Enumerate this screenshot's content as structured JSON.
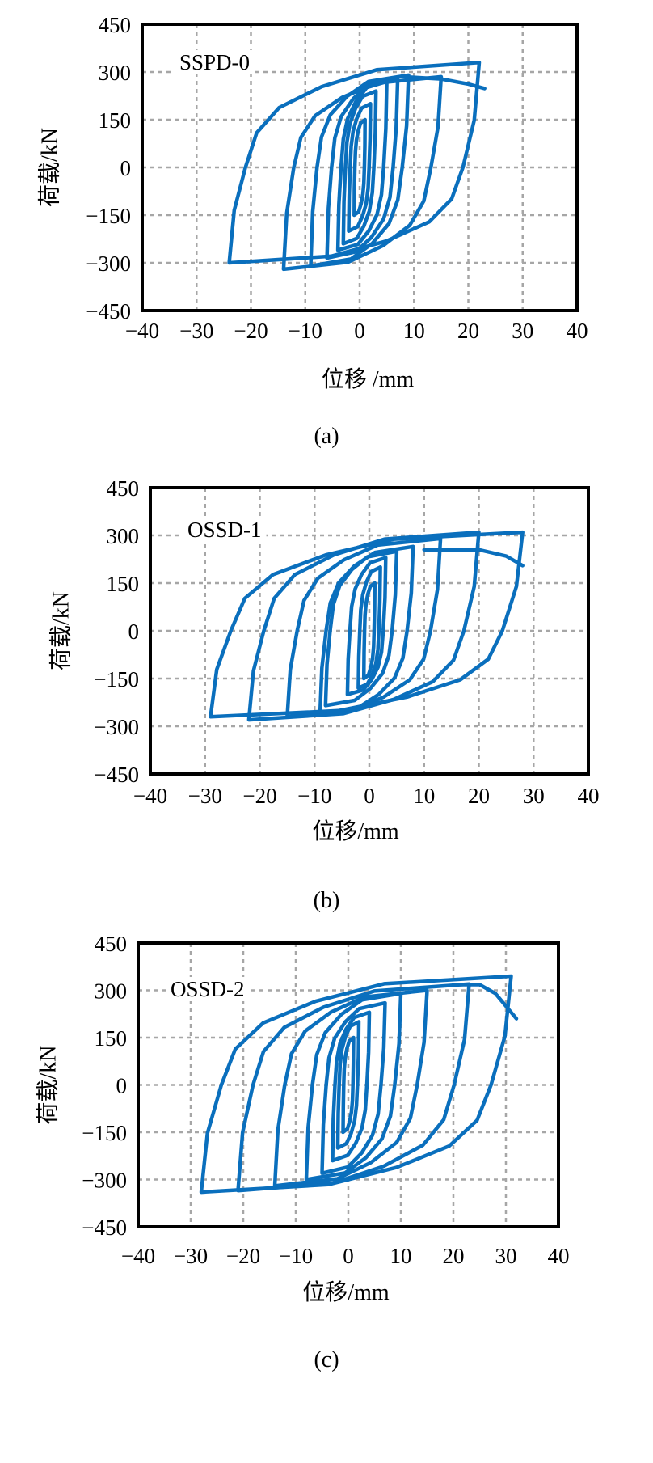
{
  "colors": {
    "curve": "#0a6fbd",
    "grid": "#a6a6a6",
    "frame": "#000000"
  },
  "chart_data": [
    {
      "type": "line",
      "title": "SSPD-0",
      "caption": "(a)",
      "xlabel": "位移 /mm",
      "ylabel": "荷载/kN",
      "xlim": [
        -40,
        40
      ],
      "ylim": [
        -450,
        450
      ],
      "xticks": [
        "-40",
        "-30",
        "-20",
        "-10",
        "0",
        "10",
        "20",
        "30",
        "40"
      ],
      "yticks": [
        "450",
        "300",
        "150",
        "0",
        "-150",
        "-300",
        "-450"
      ],
      "grid": true,
      "loops": [
        {
          "xp": 1,
          "fp": 150,
          "xn": -1,
          "fn": -150
        },
        {
          "xp": 2,
          "fp": 200,
          "xn": -2,
          "fn": -200
        },
        {
          "xp": 3,
          "fp": 240,
          "xn": -3,
          "fn": -240
        },
        {
          "xp": 5,
          "fp": 270,
          "xn": -4,
          "fn": -260
        },
        {
          "xp": 7,
          "fp": 280,
          "xn": -6,
          "fn": -285
        },
        {
          "xp": 9,
          "fp": 290,
          "xn": -9,
          "fn": -310
        },
        {
          "xp": 15,
          "fp": 285,
          "xn": -14,
          "fn": -320
        },
        {
          "xp": 22,
          "fp": 330,
          "xn": -24,
          "fn": -300
        }
      ],
      "tail": [
        [
          8,
          285
        ],
        [
          15,
          278
        ],
        [
          20,
          262
        ],
        [
          23,
          248
        ]
      ]
    },
    {
      "type": "line",
      "title": "OSSD-1",
      "caption": "(b)",
      "xlabel": "位移/mm",
      "ylabel": "荷载/kN",
      "xlim": [
        -40,
        40
      ],
      "ylim": [
        -450,
        450
      ],
      "xticks": [
        "-40",
        "-30",
        "-20",
        "-10",
        "0",
        "10",
        "20",
        "30",
        "40"
      ],
      "yticks": [
        "450",
        "300",
        "150",
        "0",
        "-150",
        "-300",
        "-450"
      ],
      "grid": true,
      "loops": [
        {
          "xp": 1,
          "fp": 150,
          "xn": -1,
          "fn": -150
        },
        {
          "xp": 2,
          "fp": 200,
          "xn": -2,
          "fn": -180
        },
        {
          "xp": 3,
          "fp": 230,
          "xn": -4,
          "fn": -200
        },
        {
          "xp": 5,
          "fp": 250,
          "xn": -8,
          "fn": -235
        },
        {
          "xp": 8,
          "fp": 265,
          "xn": -9,
          "fn": -260
        },
        {
          "xp": 13,
          "fp": 290,
          "xn": -15,
          "fn": -270
        },
        {
          "xp": 20,
          "fp": 310,
          "xn": -22,
          "fn": -280
        },
        {
          "xp": 28,
          "fp": 310,
          "xn": -29,
          "fn": -270
        }
      ],
      "tail": [
        [
          10,
          255
        ],
        [
          20,
          255
        ],
        [
          25,
          235
        ],
        [
          28,
          205
        ]
      ]
    },
    {
      "type": "line",
      "title": "OSSD-2",
      "caption": "(c)",
      "xlabel": "位移/mm",
      "ylabel": "荷载/kN",
      "xlim": [
        -40,
        40
      ],
      "ylim": [
        -450,
        450
      ],
      "xticks": [
        "-40",
        "-30",
        "-20",
        "-10",
        "0",
        "10",
        "20",
        "30",
        "40"
      ],
      "yticks": [
        "450",
        "300",
        "150",
        "0",
        "-150",
        "-300",
        "-450"
      ],
      "grid": true,
      "loops": [
        {
          "xp": 1,
          "fp": 150,
          "xn": -1,
          "fn": -150
        },
        {
          "xp": 2,
          "fp": 200,
          "xn": -2,
          "fn": -200
        },
        {
          "xp": 4,
          "fp": 230,
          "xn": -3,
          "fn": -240
        },
        {
          "xp": 7,
          "fp": 260,
          "xn": -5,
          "fn": -280
        },
        {
          "xp": 10,
          "fp": 290,
          "xn": -8,
          "fn": -300
        },
        {
          "xp": 15,
          "fp": 300,
          "xn": -14,
          "fn": -320
        },
        {
          "xp": 23,
          "fp": 320,
          "xn": -21,
          "fn": -335
        },
        {
          "xp": 31,
          "fp": 345,
          "xn": -28,
          "fn": -340
        }
      ],
      "tail": [
        [
          20,
          318
        ],
        [
          25,
          318
        ],
        [
          28,
          290
        ],
        [
          32,
          210
        ]
      ]
    }
  ]
}
